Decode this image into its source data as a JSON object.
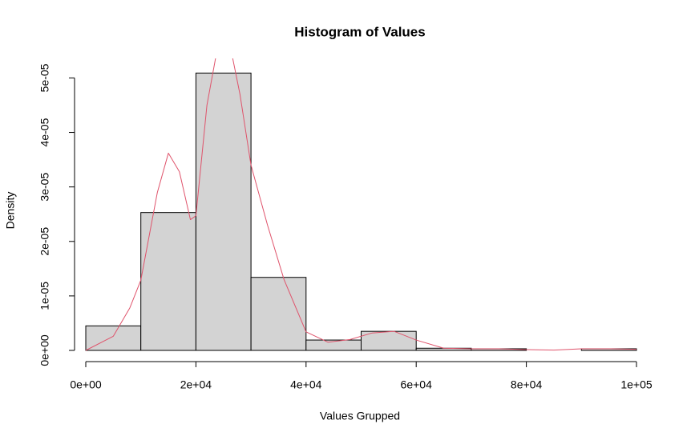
{
  "chart_data": {
    "type": "histogram",
    "title": "Histogram of Values",
    "xlabel": "Values Grupped",
    "ylabel": "Density",
    "bins": [
      0,
      10000,
      20000,
      30000,
      40000,
      50000,
      60000,
      70000,
      80000,
      90000,
      100000
    ],
    "values": [
      4.5e-06,
      2.53e-05,
      5.09e-05,
      1.34e-05,
      1.9e-06,
      3.5e-06,
      4e-07,
      3e-07,
      0,
      3e-07
    ],
    "color": "#d3d3d3",
    "density": {
      "color": "#df536b",
      "x": [
        0,
        5000,
        8000,
        10000,
        13000,
        15000,
        17000,
        19000,
        20000,
        22000,
        24000,
        26000,
        28000,
        30000,
        33000,
        36000,
        40000,
        44000,
        48000,
        52000,
        56000,
        60000,
        65000,
        70000,
        75000,
        80000,
        85000,
        90000,
        95000,
        100000
      ],
      "values": [
        0,
        2.6e-06,
        7.8e-06,
        1.29e-05,
        2.9e-05,
        3.62e-05,
        3.28e-05,
        2.4e-05,
        2.47e-05,
        4.5e-05,
        5.6e-05,
        5.7e-05,
        4.7e-05,
        3.4e-05,
        2.3e-05,
        1.3e-05,
        3.4e-06,
        1.5e-06,
        2e-06,
        3.2e-06,
        3.5e-06,
        1.9e-06,
        4e-07,
        3e-07,
        3e-07,
        1.5e-07,
        5e-08,
        3e-07,
        3e-07,
        2e-07
      ]
    },
    "xlim": [
      0,
      100000
    ],
    "ylim": [
      0,
      5.3e-05
    ],
    "xticks": [
      {
        "value": 0,
        "label": "0e+00"
      },
      {
        "value": 20000,
        "label": "2e+04"
      },
      {
        "value": 40000,
        "label": "4e+04"
      },
      {
        "value": 60000,
        "label": "6e+04"
      },
      {
        "value": 80000,
        "label": "8e+04"
      },
      {
        "value": 100000,
        "label": "1e+05"
      }
    ],
    "yticks": [
      {
        "value": 0,
        "label": "0e+00"
      },
      {
        "value": 1e-05,
        "label": "1e-05"
      },
      {
        "value": 2e-05,
        "label": "2e-05"
      },
      {
        "value": 3e-05,
        "label": "3e-05"
      },
      {
        "value": 4e-05,
        "label": "4e-05"
      },
      {
        "value": 5e-05,
        "label": "5e-05"
      }
    ]
  }
}
